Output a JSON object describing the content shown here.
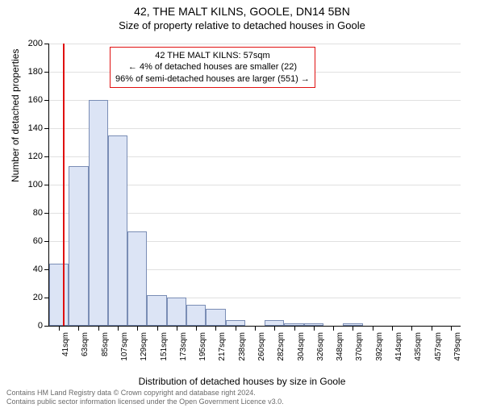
{
  "titles": {
    "main": "42, THE MALT KILNS, GOOLE, DN14 5BN",
    "sub": "Size of property relative to detached houses in Goole"
  },
  "chart": {
    "type": "bar",
    "y_axis_title": "Number of detached properties",
    "x_axis_title": "Distribution of detached houses by size in Goole",
    "ylim": [
      0,
      200
    ],
    "ytick_step": 20,
    "x_labels": [
      "41sqm",
      "63sqm",
      "85sqm",
      "107sqm",
      "129sqm",
      "151sqm",
      "173sqm",
      "195sqm",
      "217sqm",
      "238sqm",
      "260sqm",
      "282sqm",
      "304sqm",
      "326sqm",
      "348sqm",
      "370sqm",
      "392sqm",
      "414sqm",
      "435sqm",
      "457sqm",
      "479sqm"
    ],
    "values": [
      44,
      113,
      160,
      135,
      67,
      22,
      20,
      15,
      12,
      4,
      0,
      4,
      2,
      2,
      0,
      2,
      0,
      0,
      0,
      0,
      0
    ],
    "bar_fill": "#dce4f5",
    "bar_border": "#7a8db5",
    "grid_color": "#e0e0e0",
    "background_color": "#ffffff",
    "ref_line_index": 0.7,
    "ref_line_color": "#e01010",
    "label_fontsize": 10,
    "tick_fontsize": 11,
    "title_fontsize": 13
  },
  "info_box": {
    "line1": "42 THE MALT KILNS: 57sqm",
    "line2": "← 4% of detached houses are smaller (22)",
    "line3": "96% of semi-detached houses are larger (551) →",
    "border_color": "#e01010"
  },
  "footer": {
    "line1": "Contains HM Land Registry data © Crown copyright and database right 2024.",
    "line2": "Contains public sector information licensed under the Open Government Licence v3.0."
  }
}
